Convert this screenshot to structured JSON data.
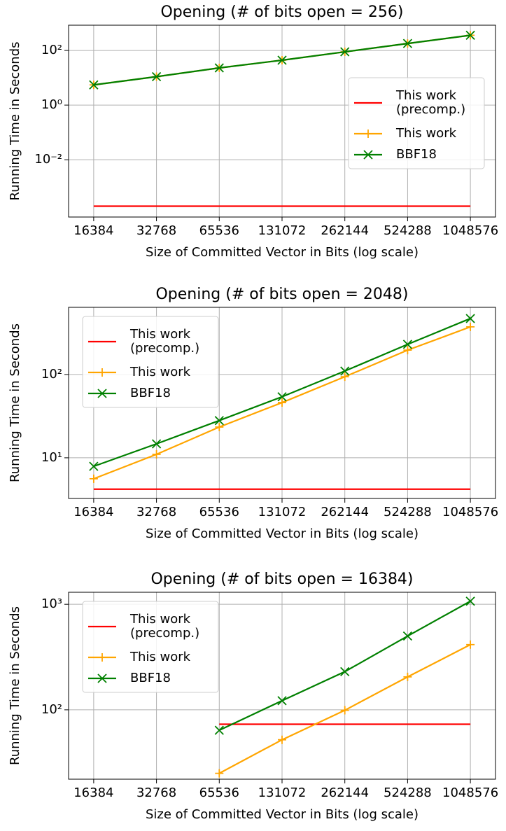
{
  "chart_data": [
    {
      "type": "line",
      "title": "Opening (# of bits open = 256)",
      "xlabel": "Size of Committed Vector in Bits (log scale)",
      "ylabel": "Running Time in Seconds",
      "x": [
        16384,
        32768,
        65536,
        131072,
        262144,
        524288,
        1048576
      ],
      "xscale": "log",
      "yscale": "log",
      "grid": true,
      "legend": "center right",
      "xlim": [
        12417,
        1383604
      ],
      "xticks": [
        16384,
        32768,
        65536,
        131072,
        262144,
        524288,
        1048576
      ],
      "ylim": [
        8e-05,
        840
      ],
      "yticks": [
        {
          "value": 0.01,
          "label": "10⁻²"
        },
        {
          "value": 1,
          "label": "10⁰"
        },
        {
          "value": 100,
          "label": "10²"
        }
      ],
      "series": [
        {
          "name": "This work\n(precomp.)",
          "color": "#ff0000",
          "values": [
            0.0002,
            0.0002,
            0.0002,
            0.0002,
            0.0002,
            0.0002,
            0.0002
          ]
        },
        {
          "name": "This work",
          "color": "#ffa500",
          "marker": "+",
          "values": [
            5.5,
            11,
            23,
            44,
            89,
            180,
            360
          ]
        },
        {
          "name": "BBF18",
          "color": "#008000",
          "marker": "x",
          "values": [
            5.5,
            11,
            23,
            44,
            89,
            180,
            360
          ]
        }
      ]
    },
    {
      "type": "line",
      "title": "Opening (# of bits open = 2048)",
      "xlabel": "Size of Committed Vector in Bits (log scale)",
      "ylabel": "Running Time in Seconds",
      "x": [
        16384,
        32768,
        65536,
        131072,
        262144,
        524288,
        1048576
      ],
      "xscale": "log",
      "yscale": "log",
      "grid": true,
      "legend": "upper left",
      "xlim": [
        12417,
        1383604
      ],
      "xticks": [
        16384,
        32768,
        65536,
        131072,
        262144,
        524288,
        1048576
      ],
      "ylim": [
        3.25,
        640
      ],
      "yticks": [
        {
          "value": 10,
          "label": "10¹"
        },
        {
          "value": 100,
          "label": "10²"
        }
      ],
      "series": [
        {
          "name": "This work\n(precomp.)",
          "color": "#ff0000",
          "values": [
            4.2,
            4.2,
            4.2,
            4.2,
            4.2,
            4.2,
            4.2
          ]
        },
        {
          "name": "This work",
          "color": "#ffa500",
          "marker": "+",
          "values": [
            5.6,
            11,
            23.4,
            46,
            94,
            196,
            373
          ]
        },
        {
          "name": "BBF18",
          "color": "#008000",
          "marker": "x",
          "values": [
            7.9,
            14.7,
            28,
            54,
            110,
            230,
            470
          ]
        }
      ]
    },
    {
      "type": "line",
      "title": "Opening (# of bits open = 16384)",
      "xlabel": "Size of Committed Vector in Bits (log scale)",
      "ylabel": "Running Time in Seconds",
      "x": [
        16384,
        32768,
        65536,
        131072,
        262144,
        524288,
        1048576
      ],
      "xscale": "log",
      "yscale": "log",
      "grid": true,
      "legend": "upper left",
      "xlim": [
        12417,
        1383604
      ],
      "xticks": [
        16384,
        32768,
        65536,
        131072,
        262144,
        524288,
        1048576
      ],
      "ylim": [
        22,
        1300
      ],
      "yticks": [
        {
          "value": 100,
          "label": "10²"
        },
        {
          "value": 1000,
          "label": "10³"
        }
      ],
      "series": [
        {
          "name": "This work\n(precomp.)",
          "color": "#ff0000",
          "values": [
            null,
            null,
            73,
            73,
            73,
            73,
            73
          ]
        },
        {
          "name": "This work",
          "color": "#ffa500",
          "marker": "+",
          "values": [
            null,
            null,
            25,
            52,
            99,
            205,
            415
          ]
        },
        {
          "name": "BBF18",
          "color": "#008000",
          "marker": "x",
          "values": [
            null,
            null,
            64,
            122,
            230,
            500,
            1070
          ]
        }
      ]
    }
  ]
}
